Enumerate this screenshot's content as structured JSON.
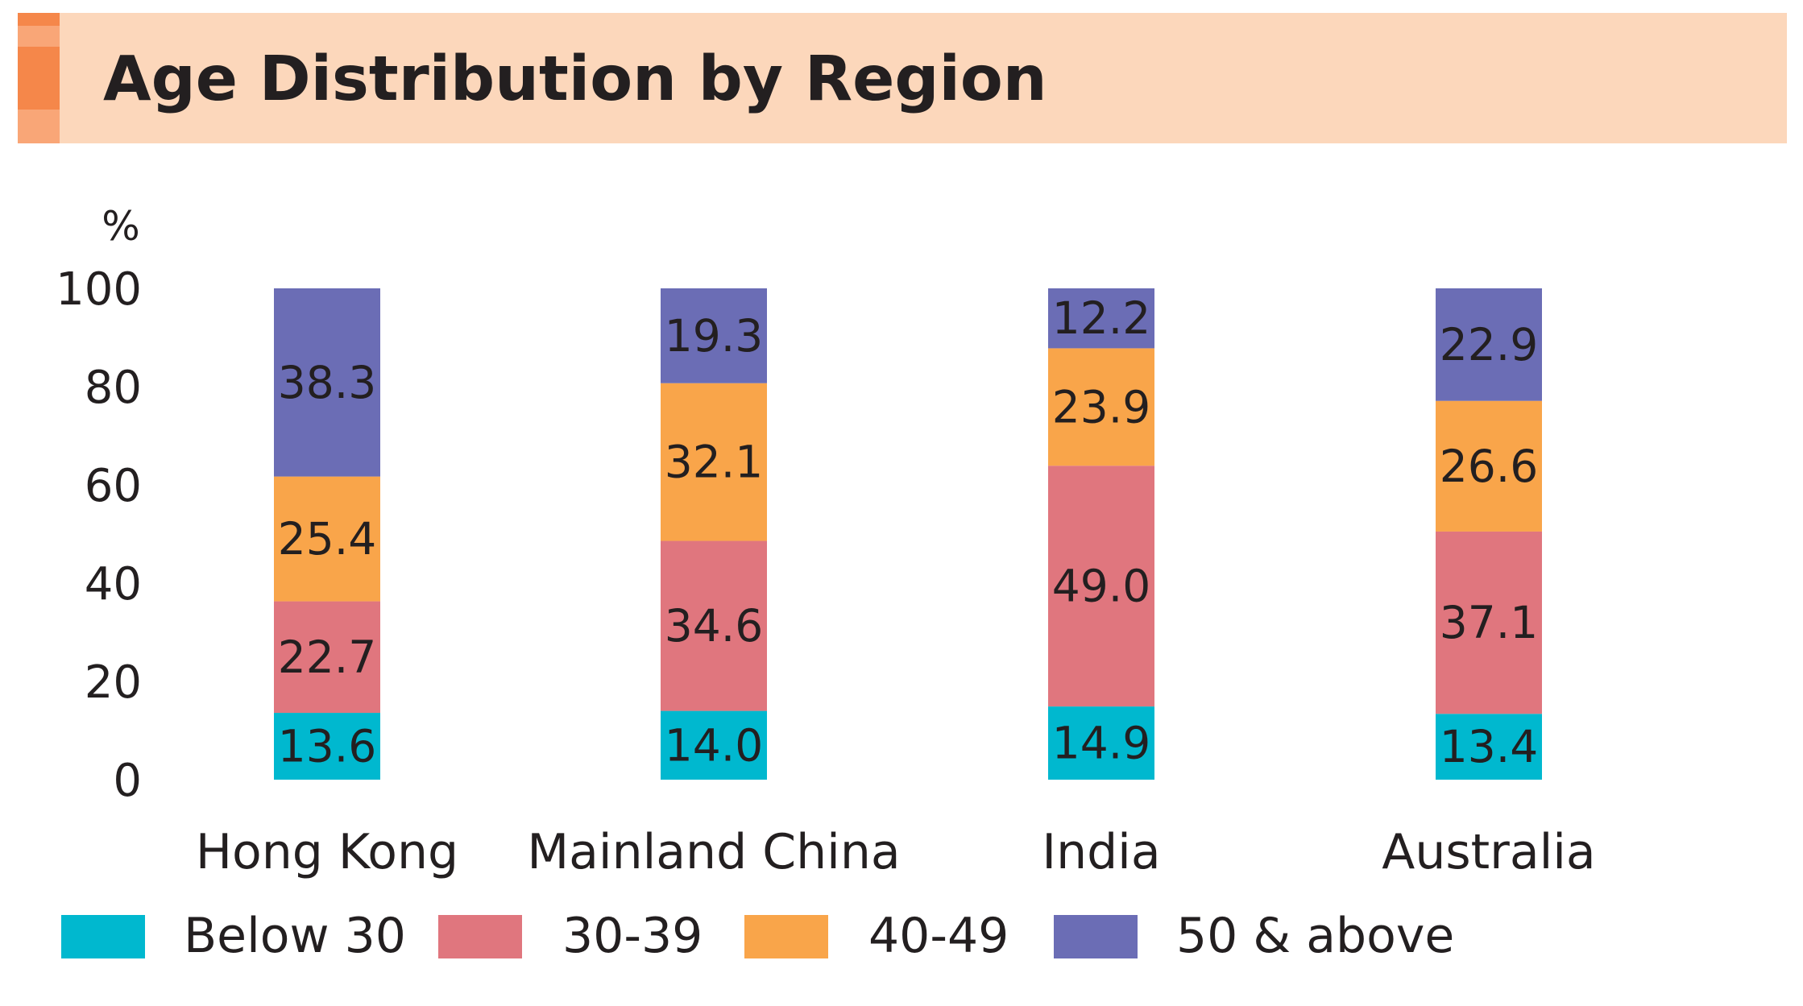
{
  "colors": {
    "header_bg": "#fcd7bb",
    "header_accent_dark": "#f5874a",
    "header_accent_light": "#f9a677",
    "text": "#231f20"
  },
  "chart_data": {
    "type": "bar",
    "stacked": true,
    "title": "Age Distribution by Region",
    "ylabel": "%",
    "xlabel": "",
    "ylim": [
      0,
      100
    ],
    "yticks": [
      0,
      20,
      40,
      60,
      80,
      100
    ],
    "grid": false,
    "legend_position": "bottom",
    "categories": [
      "Hong Kong",
      "Mainland China",
      "India",
      "Australia"
    ],
    "series": [
      {
        "name": "Below 30",
        "color": "#00b8cf",
        "values": [
          13.6,
          14.0,
          14.9,
          13.4
        ]
      },
      {
        "name": "30-39",
        "color": "#e0767e",
        "values": [
          22.7,
          34.6,
          49.0,
          37.1
        ]
      },
      {
        "name": "40-49",
        "color": "#f9a54a",
        "values": [
          25.4,
          32.1,
          23.9,
          26.6
        ]
      },
      {
        "name": "50 & above",
        "color": "#6b6db5",
        "values": [
          38.3,
          19.3,
          12.2,
          22.9
        ]
      }
    ]
  }
}
